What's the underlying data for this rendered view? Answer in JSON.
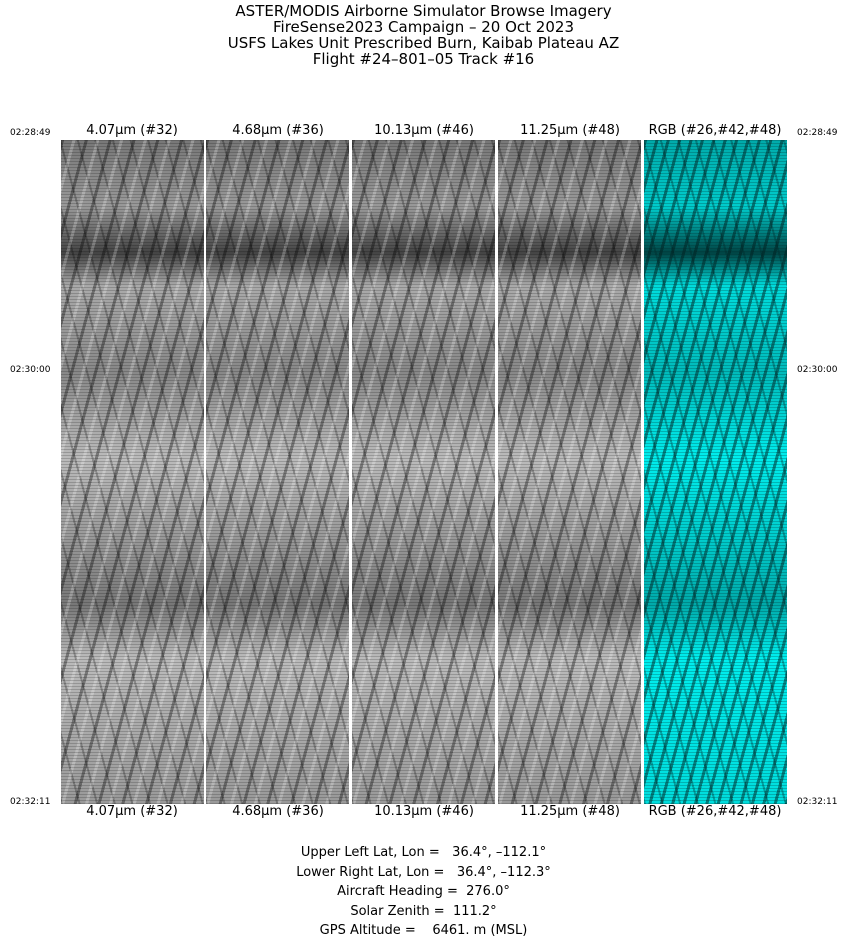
{
  "title_lines": [
    "ASTER/MODIS Airborne Simulator Browse Imagery",
    "FireSense2023 Campaign – 20 Oct 2023",
    "USFS Lakes Unit Prescribed Burn, Kaibab Plateau AZ",
    "Flight #24–801–05 Track #16"
  ],
  "times": {
    "start": "02:28:49",
    "middle": "02:30:00",
    "end": "02:32:11"
  },
  "panels": [
    {
      "label": "4.07μm (#32)",
      "type": "grayscale"
    },
    {
      "label": "4.68μm (#36)",
      "type": "grayscale"
    },
    {
      "label": "10.13μm (#46)",
      "type": "grayscale"
    },
    {
      "label": "11.25μm (#48)",
      "type": "grayscale"
    },
    {
      "label": "RGB (#26,#42,#48)",
      "type": "false-color-cyan"
    }
  ],
  "info_lines": [
    "Upper Left Lat, Lon =   36.4°, –112.1°",
    "Lower Right Lat, Lon =   36.4°, –112.3°",
    "Aircraft Heading =  276.0°",
    "Solar Zenith =  111.2°",
    "GPS Altitude =    6461. m (MSL)"
  ]
}
